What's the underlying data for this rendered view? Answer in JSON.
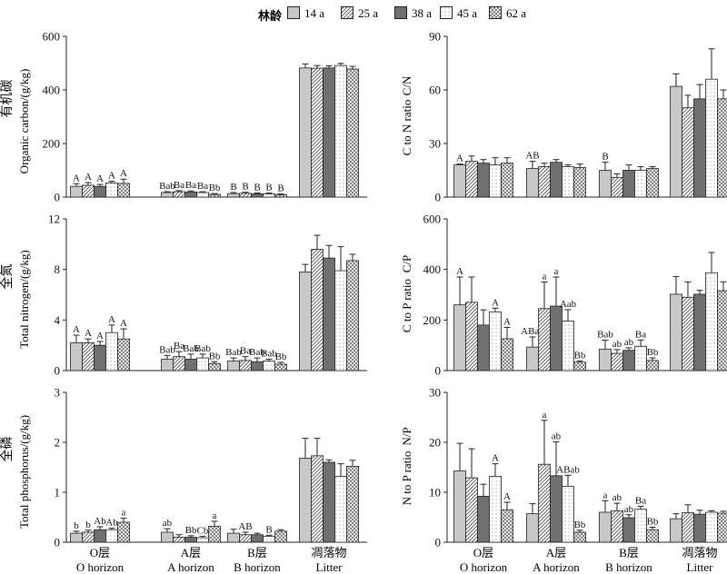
{
  "legend": {
    "title": "林龄",
    "items": [
      {
        "label": "14 a",
        "pattern": "solid-light"
      },
      {
        "label": "25 a",
        "pattern": "diag"
      },
      {
        "label": "38 a",
        "pattern": "solid-dark"
      },
      {
        "label": "45 a",
        "pattern": "dots"
      },
      {
        "label": "62 a",
        "pattern": "cross"
      }
    ]
  },
  "styles": {
    "solid_light": "#c8c8c8",
    "solid_dark": "#707070",
    "stroke": "#222222"
  },
  "chart_data": [
    {
      "type": "bar",
      "id": "organic-carbon",
      "ylabel_cn": "有机碳",
      "ylabel_en": "Organic carbon/(g/kg)",
      "ylim": [
        0,
        600
      ],
      "yticks": [
        "0",
        "200",
        "400",
        "600"
      ],
      "categories": [
        "O horizon",
        "A horizon",
        "B horizon",
        "Litter"
      ],
      "series": [
        {
          "name": "14 a",
          "values": [
            40,
            17,
            13,
            482
          ],
          "errors": [
            10,
            3,
            4,
            15
          ],
          "letters": [
            "A",
            "Bab",
            "B",
            ""
          ]
        },
        {
          "name": "25 a",
          "values": [
            44,
            20,
            14,
            481
          ],
          "errors": [
            10,
            4,
            4,
            10
          ],
          "letters": [
            "A",
            "Ba",
            "B",
            ""
          ]
        },
        {
          "name": "38 a",
          "values": [
            40,
            19,
            12,
            482
          ],
          "errors": [
            7,
            4,
            3,
            8
          ],
          "letters": [
            "A",
            "Ba",
            "B",
            ""
          ]
        },
        {
          "name": "45 a",
          "values": [
            53,
            17,
            12,
            491
          ],
          "errors": [
            6,
            3,
            3,
            8
          ],
          "letters": [
            "A",
            "Ba",
            "B",
            ""
          ]
        },
        {
          "name": "62 a",
          "values": [
            51,
            10,
            9,
            478
          ],
          "errors": [
            16,
            3,
            3,
            10
          ],
          "letters": [
            "A",
            "Bb",
            "B",
            ""
          ]
        }
      ]
    },
    {
      "type": "bar",
      "id": "cn-ratio",
      "ylabel_cn": "C/N",
      "ylabel_en": "C to N ratio",
      "ylim": [
        0,
        90
      ],
      "yticks": [
        "0",
        "30",
        "60",
        "90"
      ],
      "categories": [
        "O horizon",
        "A horizon",
        "B horizon",
        "Litter"
      ],
      "series": [
        {
          "name": "14 a",
          "values": [
            18,
            16,
            15,
            62
          ],
          "errors": [
            0.5,
            4,
            4.5,
            7
          ],
          "letters": [
            "A",
            "AB",
            "B",
            ""
          ]
        },
        {
          "name": "25 a",
          "values": [
            20,
            17,
            11,
            50
          ],
          "errors": [
            3,
            2,
            2,
            7
          ],
          "letters": [
            "",
            "",
            "",
            ""
          ]
        },
        {
          "name": "38 a",
          "values": [
            19,
            19.5,
            15,
            55
          ],
          "errors": [
            2,
            1.5,
            3,
            8
          ],
          "letters": [
            "",
            "",
            "",
            ""
          ]
        },
        {
          "name": "45 a",
          "values": [
            18,
            17,
            15,
            66
          ],
          "errors": [
            4,
            1,
            2,
            17
          ],
          "letters": [
            "",
            "",
            "",
            ""
          ]
        },
        {
          "name": "62 a",
          "values": [
            19,
            16.5,
            16,
            55
          ],
          "errors": [
            3,
            2,
            1,
            5
          ],
          "letters": [
            "",
            "",
            "",
            ""
          ]
        }
      ]
    },
    {
      "type": "bar",
      "id": "total-nitrogen",
      "ylabel_cn": "全氮",
      "ylabel_en": "Total nitrogen/(g/kg)",
      "ylim": [
        0,
        12
      ],
      "yticks": [
        "0",
        "4",
        "8",
        "12"
      ],
      "categories": [
        "O horizon",
        "A horizon",
        "B horizon",
        "Litter"
      ],
      "series": [
        {
          "name": "14 a",
          "values": [
            2.2,
            0.9,
            0.75,
            7.8
          ],
          "errors": [
            0.6,
            0.3,
            0.25,
            0.6
          ],
          "letters": [
            "A",
            "Bab",
            "Bab",
            ""
          ]
        },
        {
          "name": "25 a",
          "values": [
            2.2,
            1.1,
            0.8,
            9.6
          ],
          "errors": [
            0.3,
            0.4,
            0.3,
            1.1
          ],
          "letters": [
            "A",
            "Ba",
            "Ba",
            ""
          ]
        },
        {
          "name": "38 a",
          "values": [
            2.0,
            0.9,
            0.7,
            8.9
          ],
          "errors": [
            0.3,
            0.4,
            0.3,
            1.0
          ],
          "letters": [
            "A",
            "Bab",
            "Bab",
            ""
          ]
        },
        {
          "name": "45 a",
          "values": [
            3.0,
            1.0,
            0.75,
            7.9
          ],
          "errors": [
            0.6,
            0.3,
            0.15,
            1.9
          ],
          "letters": [
            "A",
            "Bab",
            "Bab",
            ""
          ]
        },
        {
          "name": "62 a",
          "values": [
            2.5,
            0.55,
            0.5,
            8.7
          ],
          "errors": [
            0.8,
            0.15,
            0.15,
            0.5
          ],
          "letters": [
            "A",
            "Bb",
            "Bb",
            ""
          ]
        }
      ]
    },
    {
      "type": "bar",
      "id": "cp-ratio",
      "ylabel_cn": "C/P",
      "ylabel_en": "C to P ratio",
      "ylim": [
        0,
        600
      ],
      "yticks": [
        "0",
        "200",
        "400",
        "600"
      ],
      "categories": [
        "O horizon",
        "A horizon",
        "B horizon",
        "Litter"
      ],
      "series": [
        {
          "name": "14 a",
          "values": [
            260,
            93,
            85,
            302
          ],
          "errors": [
            110,
            40,
            35,
            70
          ],
          "letters": [
            "A",
            "ABab",
            "Bab",
            ""
          ]
        },
        {
          "name": "25 a",
          "values": [
            270,
            245,
            68,
            290
          ],
          "errors": [
            100,
            105,
            15,
            60
          ],
          "letters": [
            "",
            "a",
            "ab",
            ""
          ]
        },
        {
          "name": "38 a",
          "values": [
            180,
            255,
            80,
            302
          ],
          "errors": [
            60,
            115,
            10,
            15
          ],
          "letters": [
            "",
            "a",
            "ab",
            ""
          ]
        },
        {
          "name": "45 a",
          "values": [
            232,
            196,
            96,
            387
          ],
          "errors": [
            15,
            45,
            25,
            80
          ],
          "letters": [
            "A",
            "Aab",
            "Ba",
            ""
          ]
        },
        {
          "name": "62 a",
          "values": [
            126,
            33,
            40,
            316
          ],
          "errors": [
            45,
            5,
            10,
            35
          ],
          "letters": [
            "A",
            "Bb",
            "Bb",
            ""
          ]
        }
      ]
    },
    {
      "type": "bar",
      "id": "total-phosphorus",
      "ylabel_cn": "全磷",
      "ylabel_en": "Total phosphorus/(g/kg)",
      "ylim": [
        0,
        3
      ],
      "yticks": [
        "0",
        "1",
        "2",
        "3"
      ],
      "categories": [
        "O horizon",
        "A horizon",
        "B horizon",
        "Litter"
      ],
      "series": [
        {
          "name": "14 a",
          "values": [
            0.18,
            0.2,
            0.18,
            1.68
          ],
          "errors": [
            0.04,
            0.07,
            0.08,
            0.4
          ],
          "letters": [
            "b",
            "ab",
            "",
            ""
          ]
        },
        {
          "name": "25 a",
          "values": [
            0.2,
            0.1,
            0.15,
            1.73
          ],
          "errors": [
            0.04,
            0.05,
            0.05,
            0.35
          ],
          "letters": [
            "b",
            "",
            "AB",
            ""
          ]
        },
        {
          "name": "38 a",
          "values": [
            0.25,
            0.1,
            0.15,
            1.6
          ],
          "errors": [
            0.06,
            0.03,
            0.03,
            0.05
          ],
          "letters": [
            "Ab",
            "Bb",
            "",
            ""
          ]
        },
        {
          "name": "45 a",
          "values": [
            0.25,
            0.09,
            0.12,
            1.32
          ],
          "errors": [
            0.03,
            0.03,
            0.02,
            0.25
          ],
          "letters": [
            "Ab",
            "Cb",
            "B",
            ""
          ]
        },
        {
          "name": "62 a",
          "values": [
            0.4,
            0.32,
            0.22,
            1.52
          ],
          "errors": [
            0.08,
            0.1,
            0.03,
            0.12
          ],
          "letters": [
            "a",
            "a",
            "",
            ""
          ]
        }
      ]
    },
    {
      "type": "bar",
      "id": "np-ratio",
      "ylabel_cn": "N/P",
      "ylabel_en": "N to P ratio",
      "ylim": [
        0,
        30
      ],
      "yticks": [
        "0",
        "10",
        "20",
        "30"
      ],
      "categories": [
        "O horizon",
        "A horizon",
        "B horizon",
        "Litter"
      ],
      "series": [
        {
          "name": "14 a",
          "values": [
            14.3,
            5.7,
            6,
            4.7
          ],
          "errors": [
            5.5,
            2,
            2.3,
            1
          ],
          "letters": [
            "",
            "",
            "a",
            ""
          ]
        },
        {
          "name": "25 a",
          "values": [
            12.9,
            15.6,
            6.3,
            5.9
          ],
          "errors": [
            5.8,
            8.8,
            1.5,
            1.6
          ],
          "letters": [
            "",
            "a",
            "ab",
            ""
          ]
        },
        {
          "name": "38 a",
          "values": [
            9.2,
            13.3,
            4.9,
            5.6
          ],
          "errors": [
            2.4,
            6.8,
            0.6,
            0.8
          ],
          "letters": [
            "",
            "ab",
            "ab",
            ""
          ]
        },
        {
          "name": "45 a",
          "values": [
            13.2,
            11.2,
            6.6,
            6
          ],
          "errors": [
            2.5,
            2.2,
            0.6,
            0.3
          ],
          "letters": [
            "A",
            "ABab",
            "Ba",
            ""
          ]
        },
        {
          "name": "62 a",
          "values": [
            6.5,
            2,
            2.5,
            5.8
          ],
          "errors": [
            1.5,
            0.4,
            0.5,
            0.4
          ],
          "letters": [
            "A",
            "Bb",
            "Bb",
            ""
          ]
        }
      ]
    }
  ],
  "xaxis": {
    "labels_cn": [
      "O层",
      "A层",
      "B层",
      "凋落物"
    ],
    "labels_en": [
      "O horizon",
      "A horizon",
      "B horizon",
      "Litter"
    ]
  }
}
